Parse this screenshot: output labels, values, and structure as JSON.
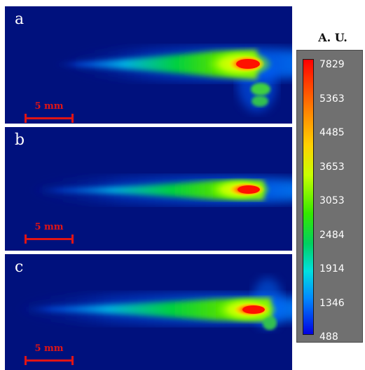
{
  "panels": [
    {
      "letter": "a",
      "scalebar": "5 mm"
    },
    {
      "letter": "b",
      "scalebar": "5 mm"
    },
    {
      "letter": "c",
      "scalebar": "5 mm"
    }
  ],
  "legend": {
    "title": "A. U.",
    "ticks": [
      "7829",
      "5363",
      "4485",
      "3653",
      "3053",
      "2484",
      "1914",
      "1346",
      "488"
    ]
  },
  "colors": {
    "background": "#00117d",
    "scalebar": "#e01515",
    "separator": "#ffffff",
    "legend_panel": "#707070"
  }
}
